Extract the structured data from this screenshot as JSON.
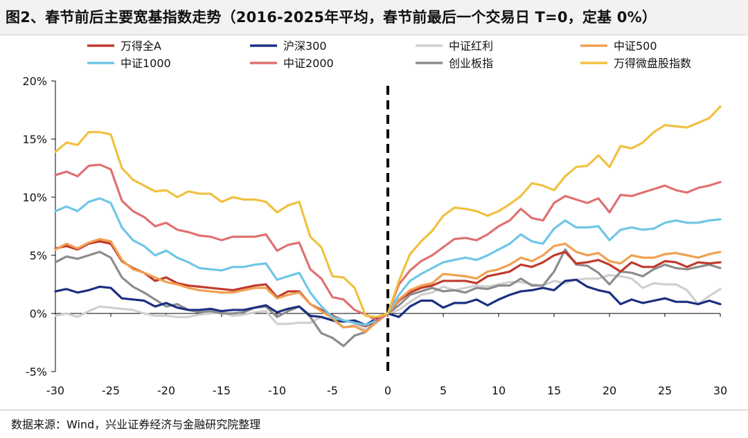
{
  "title": "图2、春节前后主要宽基指数走势（2016-2025年平均，春节前最后一个交易日 T=0，定基 0%）",
  "source": "数据来源：Wind，兴业证券经济与金融研究院整理",
  "chart_data": {
    "type": "line",
    "xlabel": "",
    "ylabel": "",
    "xlim": [
      -30,
      30
    ],
    "ylim": [
      -5,
      20
    ],
    "x_ticks": [
      -30,
      -25,
      -20,
      -15,
      -10,
      -5,
      0,
      5,
      10,
      15,
      20,
      25,
      30
    ],
    "x_tick_labels": [
      "-30",
      "-25",
      "-20",
      "-15",
      "-10",
      "-5",
      "0",
      "5",
      "10",
      "15",
      "20",
      "25",
      "30"
    ],
    "y_ticks": [
      -5,
      0,
      5,
      10,
      15,
      20
    ],
    "y_tick_labels": [
      "-5%",
      "0%",
      "5%",
      "10%",
      "15%",
      "20%"
    ],
    "legend_position": "top",
    "reference_line": {
      "x": 0,
      "style": "dashed",
      "color": "#000000"
    },
    "series": [
      {
        "name": "万得全A",
        "color": "#c0392b",
        "values": [
          5.6,
          5.8,
          5.5,
          6.0,
          6.2,
          6.0,
          4.5,
          3.9,
          3.5,
          2.8,
          3.1,
          2.6,
          2.4,
          2.3,
          2.2,
          2.1,
          2.0,
          2.2,
          2.4,
          2.5,
          1.4,
          1.9,
          1.9,
          0.8,
          0.3,
          -0.2,
          -0.6,
          -0.8,
          -1.1,
          -0.6,
          0,
          1.1,
          1.8,
          2.2,
          2.4,
          2.8,
          2.8,
          2.8,
          2.6,
          3.2,
          3.4,
          3.6,
          4.2,
          4.0,
          4.4,
          5.0,
          5.3,
          4.3,
          4.4,
          4.6,
          4.2,
          3.6,
          4.4,
          4.0,
          4.0,
          4.5,
          4.4,
          4.0,
          4.4,
          4.3,
          4.4
        ]
      },
      {
        "name": "沪深300",
        "color": "#1b2f80",
        "values": [
          1.9,
          2.1,
          1.8,
          2.0,
          2.3,
          2.2,
          1.3,
          1.2,
          1.1,
          0.6,
          0.9,
          0.5,
          0.3,
          0.3,
          0.4,
          0.2,
          0.3,
          0.3,
          0.5,
          0.7,
          0.1,
          0.4,
          0.6,
          -0.2,
          -0.3,
          -0.6,
          -0.7,
          -0.6,
          -1.0,
          -0.4,
          0,
          -0.3,
          0.6,
          1.1,
          1.1,
          0.5,
          0.9,
          0.9,
          1.2,
          0.7,
          1.2,
          1.6,
          1.9,
          2.0,
          2.2,
          2.0,
          2.8,
          2.9,
          2.3,
          2.0,
          1.8,
          0.8,
          1.2,
          0.9,
          1.1,
          1.3,
          1.0,
          1.0,
          0.8,
          1.1,
          0.8
        ]
      },
      {
        "name": "中证红利",
        "color": "#cfcfcf",
        "values": [
          -0.2,
          0.0,
          -0.3,
          0.2,
          0.6,
          0.5,
          0.4,
          0.3,
          0.0,
          -0.2,
          -0.2,
          -0.3,
          -0.3,
          -0.1,
          0.0,
          0.1,
          -0.2,
          -0.1,
          0.1,
          0.2,
          -0.9,
          -0.9,
          -0.8,
          -0.8,
          -0.3,
          -0.6,
          -1.2,
          -1.0,
          -1.4,
          -0.8,
          0,
          0.3,
          1.0,
          1.6,
          1.8,
          2.3,
          2.0,
          2.2,
          2.4,
          2.3,
          2.5,
          2.7,
          2.7,
          2.5,
          2.4,
          2.8,
          2.6,
          2.9,
          3.0,
          3.0,
          3.3,
          3.2,
          3.0,
          2.2,
          2.6,
          2.5,
          2.5,
          2.0,
          0.8,
          1.5,
          2.1
        ]
      },
      {
        "name": "中证500",
        "color": "#f0a050",
        "values": [
          5.5,
          6.0,
          5.6,
          6.1,
          6.4,
          6.2,
          4.6,
          3.8,
          3.5,
          3.1,
          2.7,
          2.5,
          2.2,
          2.0,
          1.9,
          1.8,
          1.8,
          2.0,
          2.2,
          2.2,
          1.3,
          1.6,
          1.8,
          0.8,
          0.2,
          -0.4,
          -1.2,
          -1.1,
          -1.6,
          -0.7,
          0,
          1.2,
          2.0,
          2.4,
          2.6,
          3.4,
          3.3,
          3.2,
          3.0,
          3.6,
          3.8,
          4.2,
          4.8,
          4.5,
          5.0,
          5.8,
          6.0,
          5.3,
          5.0,
          5.2,
          4.5,
          4.3,
          5.0,
          4.8,
          4.8,
          5.1,
          5.2,
          5.0,
          4.8,
          5.1,
          5.3
        ]
      },
      {
        "name": "中证1000",
        "color": "#6ec6e6",
        "values": [
          8.8,
          9.2,
          8.8,
          9.6,
          9.9,
          9.5,
          7.4,
          6.3,
          5.8,
          5.0,
          5.4,
          4.8,
          4.4,
          3.9,
          3.8,
          3.7,
          4.0,
          4.0,
          4.2,
          4.3,
          2.9,
          3.2,
          3.5,
          1.8,
          0.6,
          -0.3,
          -0.6,
          -0.8,
          -1.0,
          -0.6,
          0,
          1.6,
          2.8,
          3.4,
          3.9,
          4.4,
          4.6,
          4.8,
          4.6,
          5.0,
          5.5,
          6.0,
          6.8,
          6.2,
          6.0,
          7.3,
          8.0,
          7.4,
          7.4,
          7.5,
          6.3,
          7.2,
          7.4,
          7.2,
          7.3,
          7.8,
          8.0,
          7.8,
          7.8,
          8.0,
          8.1
        ]
      },
      {
        "name": "中证2000",
        "color": "#e07070",
        "values": [
          11.9,
          12.2,
          11.8,
          12.7,
          12.8,
          12.4,
          9.7,
          8.8,
          8.3,
          7.5,
          7.8,
          7.2,
          7.0,
          6.7,
          6.6,
          6.3,
          6.6,
          6.6,
          6.6,
          6.8,
          5.4,
          5.9,
          6.1,
          3.8,
          3.0,
          1.4,
          1.2,
          0.3,
          -0.1,
          -0.6,
          0,
          2.5,
          3.7,
          4.5,
          5.0,
          5.7,
          6.4,
          6.5,
          6.3,
          6.8,
          7.5,
          8.0,
          9.0,
          8.2,
          8.0,
          9.5,
          10.1,
          9.8,
          9.5,
          9.9,
          8.7,
          10.2,
          10.1,
          10.4,
          10.7,
          11.0,
          10.6,
          10.4,
          10.8,
          11.0,
          11.3
        ]
      },
      {
        "name": "创业板指",
        "color": "#8c8c8c",
        "values": [
          4.4,
          4.9,
          4.7,
          5.0,
          5.3,
          4.8,
          3.1,
          2.3,
          1.8,
          1.2,
          0.6,
          0.8,
          0.3,
          0.1,
          0.2,
          0.0,
          0.0,
          0.1,
          0.5,
          0.6,
          -0.3,
          0.2,
          0.6,
          -0.3,
          -1.7,
          -2.1,
          -2.8,
          -1.9,
          -1.6,
          -0.5,
          0,
          0.7,
          1.6,
          1.9,
          2.2,
          1.9,
          2.0,
          1.8,
          2.2,
          2.1,
          2.4,
          2.4,
          3.0,
          2.4,
          2.4,
          3.6,
          5.5,
          4.2,
          4.1,
          3.5,
          2.5,
          3.6,
          3.5,
          3.2,
          3.8,
          4.2,
          3.9,
          3.8,
          4.0,
          4.2,
          3.9
        ]
      },
      {
        "name": "万得微盘股指数",
        "color": "#f0c040",
        "values": [
          13.9,
          14.7,
          14.5,
          15.6,
          15.6,
          15.4,
          12.5,
          11.5,
          11.0,
          10.5,
          10.6,
          10.0,
          10.5,
          10.3,
          10.3,
          9.6,
          10.0,
          9.8,
          9.8,
          9.6,
          8.7,
          9.3,
          9.6,
          6.6,
          5.7,
          3.2,
          3.1,
          2.2,
          -0.2,
          -0.3,
          0,
          2.8,
          5.1,
          6.2,
          7.1,
          8.4,
          9.1,
          9.0,
          8.8,
          8.4,
          8.8,
          9.4,
          10.1,
          11.2,
          11.0,
          10.6,
          11.8,
          12.6,
          12.7,
          13.6,
          12.6,
          14.4,
          14.2,
          14.7,
          15.6,
          16.2,
          16.1,
          16.0,
          16.4,
          16.8,
          17.8
        ]
      }
    ]
  }
}
